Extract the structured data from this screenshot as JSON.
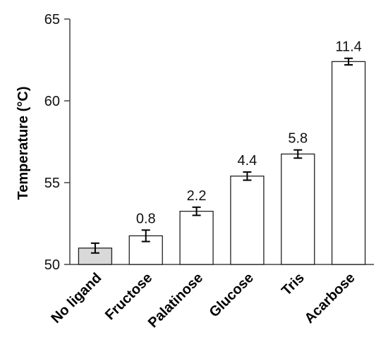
{
  "chart_data": {
    "type": "bar",
    "title": "",
    "xlabel": "",
    "ylabel": "Temperature (°C)",
    "ylim": [
      50,
      65
    ],
    "yticks": [
      50,
      55,
      60,
      65
    ],
    "grid": false,
    "categories": [
      "No ligand",
      "Fructose",
      "Palatinose",
      "Glucose",
      "Tris",
      "Acarbose"
    ],
    "values": [
      51.0,
      51.75,
      53.25,
      55.4,
      56.75,
      62.4
    ],
    "errors": [
      0.3,
      0.35,
      0.25,
      0.25,
      0.25,
      0.2
    ],
    "data_labels": [
      "",
      "0.8",
      "2.2",
      "4.4",
      "5.8",
      "11.4"
    ],
    "bar_colors": [
      "#d9d9d9",
      "#ffffff",
      "#ffffff",
      "#ffffff",
      "#ffffff",
      "#ffffff"
    ]
  }
}
